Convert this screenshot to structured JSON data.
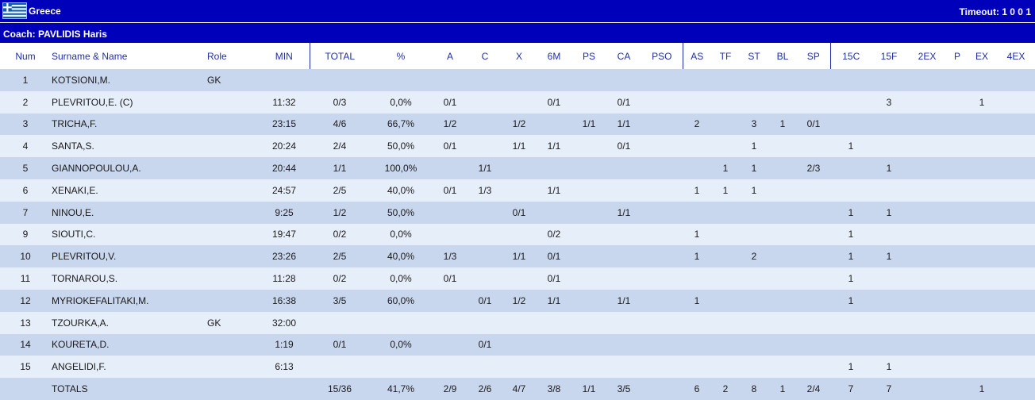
{
  "header": {
    "team": "Greece",
    "timeout": "Timeout: 1 0 0 1",
    "coach": "Coach: PAVLIDIS Haris"
  },
  "columns": [
    "Num",
    "Surname & Name",
    "Role",
    "MIN",
    "TOTAL",
    "%",
    "A",
    "C",
    "X",
    "6M",
    "PS",
    "CA",
    "PSO",
    "AS",
    "TF",
    "ST",
    "BL",
    "SP",
    "15C",
    "15F",
    "2EX",
    "P",
    "EX",
    "4EX"
  ],
  "rows": [
    [
      "1",
      "KOTSIONI,M.",
      "GK",
      "",
      "",
      "",
      "",
      "",
      "",
      "",
      "",
      "",
      "",
      "",
      "",
      "",
      "",
      "",
      "",
      "",
      "",
      "",
      "",
      ""
    ],
    [
      "2",
      "PLEVRITOU,E.  (C)",
      "",
      "11:32",
      "0/3",
      "0,0%",
      "0/1",
      "",
      "",
      "0/1",
      "",
      "0/1",
      "",
      "",
      "",
      "",
      "",
      "",
      "",
      "3",
      "",
      "",
      "1",
      ""
    ],
    [
      "3",
      "TRICHA,F.",
      "",
      "23:15",
      "4/6",
      "66,7%",
      "1/2",
      "",
      "1/2",
      "",
      "1/1",
      "1/1",
      "",
      "2",
      "",
      "3",
      "1",
      "0/1",
      "",
      "",
      "",
      "",
      "",
      ""
    ],
    [
      "4",
      "SANTA,S.",
      "",
      "20:24",
      "2/4",
      "50,0%",
      "0/1",
      "",
      "1/1",
      "1/1",
      "",
      "0/1",
      "",
      "",
      "",
      "1",
      "",
      "",
      "1",
      "",
      "",
      "",
      "",
      ""
    ],
    [
      "5",
      "GIANNOPOULOU,A.",
      "",
      "20:44",
      "1/1",
      "100,0%",
      "",
      "1/1",
      "",
      "",
      "",
      "",
      "",
      "",
      "1",
      "1",
      "",
      "2/3",
      "",
      "1",
      "",
      "",
      "",
      ""
    ],
    [
      "6",
      "XENAKI,E.",
      "",
      "24:57",
      "2/5",
      "40,0%",
      "0/1",
      "1/3",
      "",
      "1/1",
      "",
      "",
      "",
      "1",
      "1",
      "1",
      "",
      "",
      "",
      "",
      "",
      "",
      "",
      ""
    ],
    [
      "7",
      "NINOU,E.",
      "",
      "9:25",
      "1/2",
      "50,0%",
      "",
      "",
      "0/1",
      "",
      "",
      "1/1",
      "",
      "",
      "",
      "",
      "",
      "",
      "1",
      "1",
      "",
      "",
      "",
      ""
    ],
    [
      "9",
      "SIOUTI,C.",
      "",
      "19:47",
      "0/2",
      "0,0%",
      "",
      "",
      "",
      "0/2",
      "",
      "",
      "",
      "1",
      "",
      "",
      "",
      "",
      "1",
      "",
      "",
      "",
      "",
      ""
    ],
    [
      "10",
      "PLEVRITOU,V.",
      "",
      "23:26",
      "2/5",
      "40,0%",
      "1/3",
      "",
      "1/1",
      "0/1",
      "",
      "",
      "",
      "1",
      "",
      "2",
      "",
      "",
      "1",
      "1",
      "",
      "",
      "",
      ""
    ],
    [
      "11",
      "TORNAROU,S.",
      "",
      "11:28",
      "0/2",
      "0,0%",
      "0/1",
      "",
      "",
      "0/1",
      "",
      "",
      "",
      "",
      "",
      "",
      "",
      "",
      "1",
      "",
      "",
      "",
      "",
      ""
    ],
    [
      "12",
      "MYRIOKEFALITAKI,M.",
      "",
      "16:38",
      "3/5",
      "60,0%",
      "",
      "0/1",
      "1/2",
      "1/1",
      "",
      "1/1",
      "",
      "1",
      "",
      "",
      "",
      "",
      "1",
      "",
      "",
      "",
      "",
      ""
    ],
    [
      "13",
      "TZOURKA,A.",
      "GK",
      "32:00",
      "",
      "",
      "",
      "",
      "",
      "",
      "",
      "",
      "",
      "",
      "",
      "",
      "",
      "",
      "",
      "",
      "",
      "",
      "",
      ""
    ],
    [
      "14",
      "KOURETA,D.",
      "",
      "1:19",
      "0/1",
      "0,0%",
      "",
      "0/1",
      "",
      "",
      "",
      "",
      "",
      "",
      "",
      "",
      "",
      "",
      "",
      "",
      "",
      "",
      "",
      ""
    ],
    [
      "15",
      "ANGELIDI,F.",
      "",
      "6:13",
      "",
      "",
      "",
      "",
      "",
      "",
      "",
      "",
      "",
      "",
      "",
      "",
      "",
      "",
      "1",
      "1",
      "",
      "",
      "",
      ""
    ]
  ],
  "totals": [
    "",
    "TOTALS",
    "",
    "",
    "15/36",
    "41,7%",
    "2/9",
    "2/6",
    "4/7",
    "3/8",
    "1/1",
    "3/5",
    "",
    "6",
    "2",
    "8",
    "1",
    "2/4",
    "7",
    "7",
    "",
    "",
    "1",
    ""
  ]
}
